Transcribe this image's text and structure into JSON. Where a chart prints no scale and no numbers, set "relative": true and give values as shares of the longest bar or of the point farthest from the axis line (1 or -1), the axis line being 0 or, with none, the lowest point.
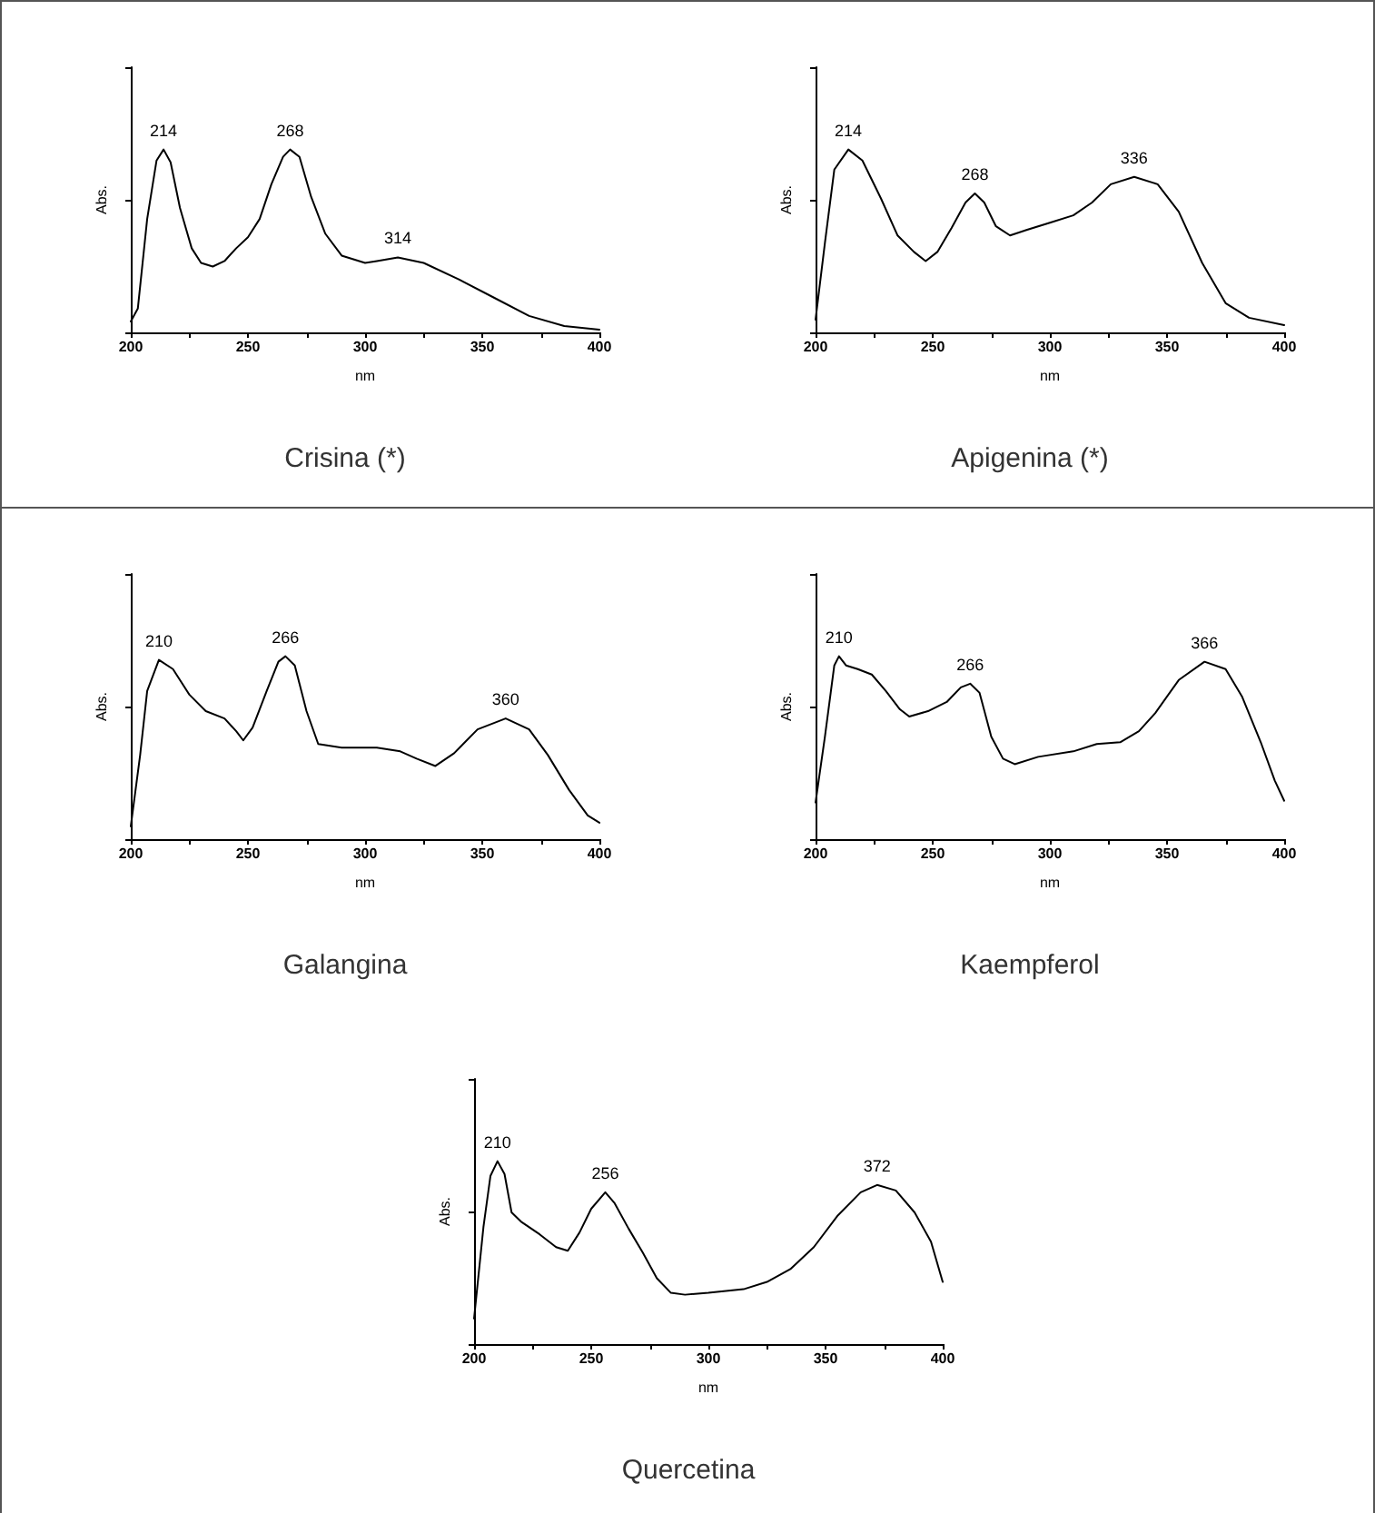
{
  "chart_data": [
    {
      "type": "line",
      "title": "Crisina (*)",
      "xlabel": "nm",
      "ylabel": "Abs.",
      "relative": true,
      "marker": "none",
      "line_style": "solid",
      "xlim": [
        200,
        400
      ],
      "xticks": [
        200,
        {
          "value": 225,
          "label": null
        },
        250,
        {
          "value": 275,
          "label": null
        },
        300,
        {
          "value": 325,
          "label": null
        },
        350,
        {
          "value": 375,
          "label": null
        },
        400
      ],
      "annotations": [
        {
          "text": "214",
          "x": 214,
          "y": 1.0
        },
        {
          "text": "268",
          "x": 268,
          "y": 1.0
        },
        {
          "text": "314",
          "x": 314,
          "y": 0.41
        }
      ],
      "series": [
        {
          "color": "#000000",
          "x": [
            200,
            203,
            207,
            211,
            214,
            217,
            221,
            226,
            230,
            235,
            240,
            245,
            250,
            255,
            260,
            265,
            268,
            272,
            277,
            283,
            290,
            300,
            305,
            314,
            325,
            340,
            355,
            370,
            385,
            400
          ],
          "values": [
            0.06,
            0.13,
            0.62,
            0.94,
            1.0,
            0.93,
            0.68,
            0.46,
            0.38,
            0.36,
            0.39,
            0.46,
            0.52,
            0.62,
            0.81,
            0.96,
            1.0,
            0.96,
            0.74,
            0.54,
            0.42,
            0.38,
            0.39,
            0.41,
            0.38,
            0.29,
            0.19,
            0.09,
            0.035,
            0.015
          ]
        }
      ]
    },
    {
      "type": "line",
      "title": "Apigenina (*)",
      "xlabel": "nm",
      "ylabel": "Abs.",
      "relative": true,
      "marker": "none",
      "line_style": "solid",
      "xlim": [
        200,
        400
      ],
      "xticks": [
        200,
        {
          "value": 225,
          "label": null
        },
        250,
        {
          "value": 275,
          "label": null
        },
        300,
        {
          "value": 325,
          "label": null
        },
        350,
        {
          "value": 375,
          "label": null
        },
        400
      ],
      "annotations": [
        {
          "text": "214",
          "x": 214,
          "y": 1.0
        },
        {
          "text": "268",
          "x": 268,
          "y": 0.76
        },
        {
          "text": "336",
          "x": 336,
          "y": 0.85
        }
      ],
      "series": [
        {
          "color": "#000000",
          "x": [
            200,
            204,
            208,
            214,
            220,
            228,
            235,
            242,
            247,
            252,
            258,
            264,
            268,
            272,
            277,
            283,
            290,
            300,
            310,
            318,
            326,
            336,
            346,
            355,
            365,
            375,
            385,
            400
          ],
          "values": [
            0.07,
            0.49,
            0.89,
            1.0,
            0.94,
            0.73,
            0.53,
            0.44,
            0.39,
            0.44,
            0.57,
            0.71,
            0.76,
            0.71,
            0.58,
            0.53,
            0.56,
            0.6,
            0.64,
            0.71,
            0.81,
            0.85,
            0.81,
            0.66,
            0.38,
            0.16,
            0.08,
            0.04
          ]
        }
      ]
    },
    {
      "type": "line",
      "title": "Galangina",
      "xlabel": "nm",
      "ylabel": "Abs.",
      "relative": true,
      "marker": "none",
      "line_style": "solid",
      "xlim": [
        200,
        400
      ],
      "xticks": [
        200,
        {
          "value": 225,
          "label": null
        },
        250,
        {
          "value": 275,
          "label": null
        },
        300,
        {
          "value": 325,
          "label": null
        },
        350,
        {
          "value": 375,
          "label": null
        },
        400
      ],
      "annotations": [
        {
          "text": "210",
          "x": 212,
          "y": 0.98
        },
        {
          "text": "266",
          "x": 266,
          "y": 1.0
        },
        {
          "text": "360",
          "x": 360,
          "y": 0.66
        }
      ],
      "series": [
        {
          "color": "#000000",
          "x": [
            200,
            204,
            207,
            212,
            218,
            225,
            232,
            240,
            245,
            248,
            252,
            258,
            263,
            266,
            270,
            275,
            280,
            290,
            305,
            315,
            322,
            330,
            338,
            348,
            360,
            370,
            378,
            387,
            395,
            400
          ],
          "values": [
            0.07,
            0.46,
            0.81,
            0.98,
            0.93,
            0.79,
            0.7,
            0.66,
            0.59,
            0.54,
            0.61,
            0.81,
            0.97,
            1.0,
            0.95,
            0.7,
            0.52,
            0.5,
            0.5,
            0.48,
            0.44,
            0.4,
            0.47,
            0.6,
            0.66,
            0.6,
            0.46,
            0.27,
            0.13,
            0.09
          ]
        }
      ]
    },
    {
      "type": "line",
      "title": "Kaempferol",
      "xlabel": "nm",
      "ylabel": "Abs.",
      "relative": true,
      "marker": "none",
      "line_style": "solid",
      "xlim": [
        200,
        400
      ],
      "xticks": [
        200,
        {
          "value": 225,
          "label": null
        },
        250,
        {
          "value": 275,
          "label": null
        },
        300,
        {
          "value": 325,
          "label": null
        },
        350,
        {
          "value": 375,
          "label": null
        },
        400
      ],
      "annotations": [
        {
          "text": "210",
          "x": 210,
          "y": 1.0
        },
        {
          "text": "266",
          "x": 266,
          "y": 0.85
        },
        {
          "text": "366",
          "x": 366,
          "y": 0.97
        }
      ],
      "series": [
        {
          "color": "#000000",
          "x": [
            200,
            204,
            208,
            210,
            213,
            218,
            224,
            230,
            236,
            240,
            248,
            256,
            262,
            266,
            270,
            275,
            280,
            285,
            295,
            310,
            320,
            330,
            338,
            345,
            355,
            366,
            375,
            382,
            390,
            396,
            400
          ],
          "values": [
            0.2,
            0.56,
            0.95,
            1.0,
            0.95,
            0.93,
            0.9,
            0.81,
            0.71,
            0.67,
            0.7,
            0.75,
            0.83,
            0.85,
            0.8,
            0.56,
            0.44,
            0.41,
            0.45,
            0.48,
            0.52,
            0.53,
            0.59,
            0.69,
            0.87,
            0.97,
            0.93,
            0.78,
            0.53,
            0.32,
            0.21
          ]
        }
      ]
    },
    {
      "type": "line",
      "title": "Quercetina",
      "xlabel": "nm",
      "ylabel": "Abs.",
      "relative": true,
      "marker": "none",
      "line_style": "solid",
      "xlim": [
        200,
        400
      ],
      "xticks": [
        200,
        {
          "value": 225,
          "label": null
        },
        250,
        {
          "value": 275,
          "label": null
        },
        300,
        {
          "value": 325,
          "label": null
        },
        350,
        {
          "value": 375,
          "label": null
        },
        400
      ],
      "annotations": [
        {
          "text": "210",
          "x": 210,
          "y": 1.0
        },
        {
          "text": "256",
          "x": 256,
          "y": 0.83
        },
        {
          "text": "372",
          "x": 372,
          "y": 0.87
        }
      ],
      "series": [
        {
          "color": "#000000",
          "x": [
            200,
            204,
            207,
            210,
            213,
            216,
            220,
            228,
            235,
            240,
            245,
            250,
            256,
            260,
            266,
            272,
            278,
            284,
            290,
            300,
            315,
            325,
            335,
            345,
            355,
            365,
            372,
            380,
            388,
            395,
            400
          ],
          "values": [
            0.14,
            0.64,
            0.92,
            1.0,
            0.93,
            0.72,
            0.67,
            0.6,
            0.53,
            0.51,
            0.61,
            0.74,
            0.83,
            0.77,
            0.63,
            0.5,
            0.36,
            0.28,
            0.27,
            0.28,
            0.3,
            0.34,
            0.41,
            0.53,
            0.7,
            0.83,
            0.87,
            0.84,
            0.72,
            0.56,
            0.34
          ]
        }
      ]
    }
  ]
}
